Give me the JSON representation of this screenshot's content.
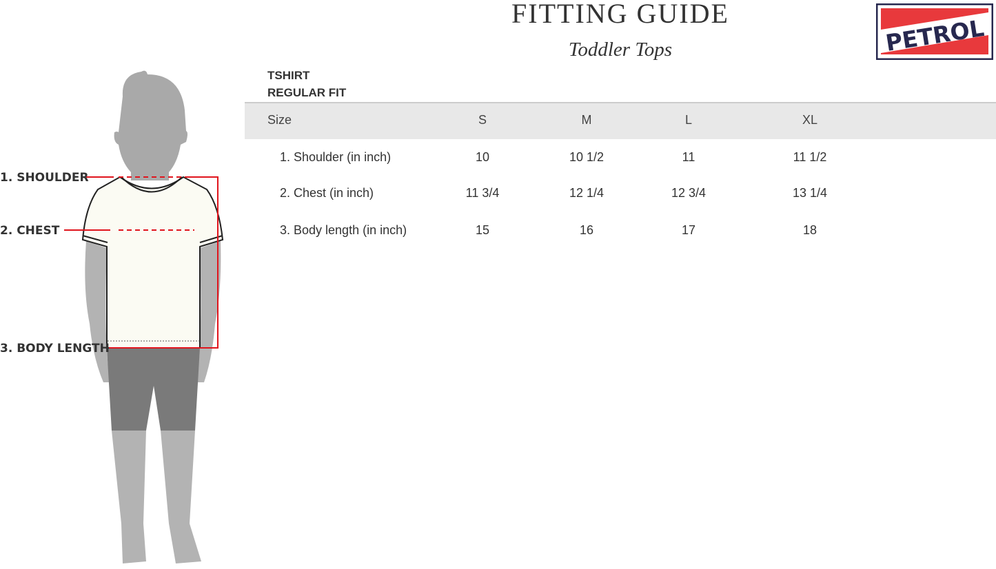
{
  "header": {
    "title": "FITTING GUIDE",
    "subtitle": "Toddler Tops"
  },
  "logo": {
    "text": "PETROL",
    "colors": {
      "navy": "#27284f",
      "red": "#e8393c"
    }
  },
  "product": {
    "type": "TSHIRT",
    "fit": "REGULAR FIT"
  },
  "table": {
    "columns": [
      "Size",
      "S",
      "M",
      "L",
      "XL"
    ],
    "rows": [
      {
        "label": "1. Shoulder (in inch)",
        "values": [
          "10",
          "10 1/2",
          "11",
          "11 1/2"
        ]
      },
      {
        "label": "2. Chest (in inch)",
        "values": [
          "11 3/4",
          "12 1/4",
          "12 3/4",
          "13 1/4"
        ]
      },
      {
        "label": "3. Body length (in inch)",
        "values": [
          "15",
          "16",
          "17",
          "18"
        ]
      }
    ]
  },
  "figure": {
    "labels": {
      "shoulder": "1. SHOULDER",
      "chest": "2. CHEST",
      "body_length": "3. BODY LENGTH"
    },
    "measure_color": "#e0141c"
  }
}
